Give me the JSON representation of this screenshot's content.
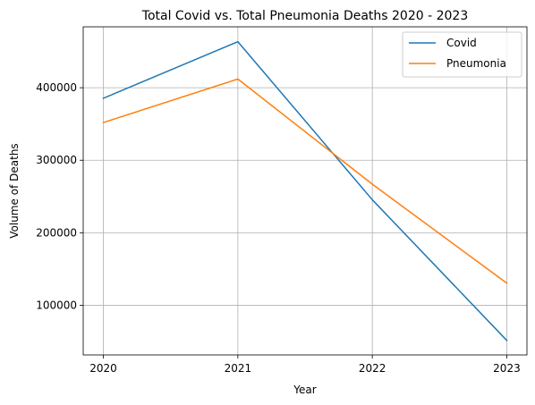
{
  "chart_data": {
    "type": "line",
    "title": "Total Covid vs. Total Pneumonia Deaths 2020 - 2023",
    "xlabel": "Year",
    "ylabel": "Volume of Deaths",
    "x": [
      2020,
      2021,
      2022,
      2023
    ],
    "x_tick_labels": [
      "2020",
      "2021",
      "2022",
      "2023"
    ],
    "y_ticks": [
      100000,
      200000,
      300000,
      400000
    ],
    "y_tick_labels": [
      "100000",
      "200000",
      "300000",
      "400000"
    ],
    "xlim": [
      2019.85,
      2023.15
    ],
    "ylim": [
      31500,
      484000
    ],
    "grid": true,
    "legend_position": "top-right",
    "series": [
      {
        "name": "Covid",
        "color": "#1f77b4",
        "values": [
          385500,
          463500,
          245500,
          51500
        ]
      },
      {
        "name": "Pneumonia",
        "color": "#ff7f0e",
        "values": [
          352000,
          412000,
          267000,
          130500
        ]
      }
    ]
  }
}
